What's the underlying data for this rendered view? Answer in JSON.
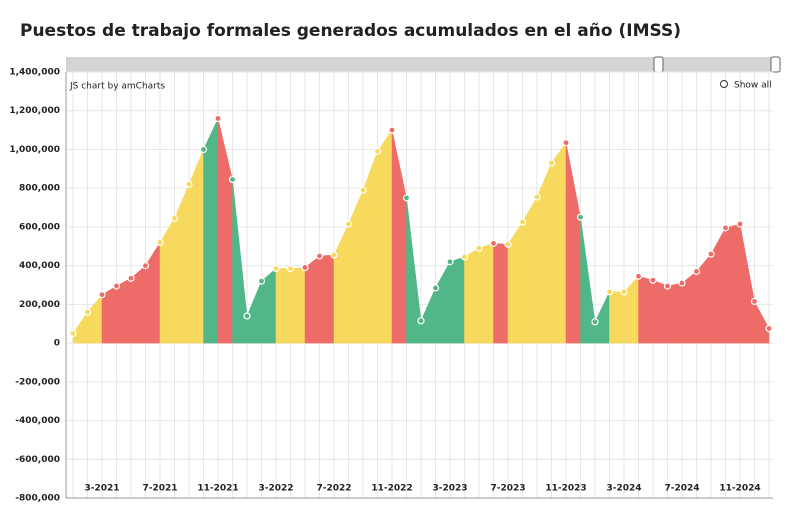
{
  "chart_data": {
    "type": "area",
    "title": "Puestos de trabajo formales generados acumulados en el año (IMSS)",
    "credit": "JS chart by amCharts",
    "zoom_button": "Show all",
    "categories": [
      null,
      null,
      "3-2021",
      null,
      null,
      null,
      "7-2021",
      null,
      null,
      null,
      "11-2021",
      null,
      null,
      null,
      "3-2022",
      null,
      null,
      null,
      "7-2022",
      null,
      null,
      null,
      "11-2022",
      null,
      null,
      null,
      "3-2023",
      null,
      null,
      null,
      "7-2023",
      null,
      null,
      null,
      "11-2023",
      null,
      null,
      null,
      "3-2024",
      null,
      null,
      null,
      "7-2024",
      null,
      null,
      null,
      "11-2024",
      null,
      null
    ],
    "values": [
      50000,
      160000,
      250000,
      295000,
      335000,
      400000,
      520000,
      645000,
      820000,
      1000000,
      1160000,
      845000,
      140000,
      320000,
      385000,
      385000,
      390000,
      450000,
      455000,
      615000,
      790000,
      990000,
      1100000,
      750000,
      115000,
      285000,
      420000,
      445000,
      490000,
      515000,
      510000,
      625000,
      755000,
      930000,
      1035000,
      650000,
      110000,
      265000,
      265000,
      345000,
      325000,
      295000,
      310000,
      370000,
      460000,
      595000,
      615000,
      215000,
      75000
    ],
    "colors": [
      "#f7d95e",
      "#f7d95e",
      "#ee6c67",
      "#ee6c67",
      "#ee6c67",
      "#ee6c67",
      "#f7d95e",
      "#f7d95e",
      "#f7d95e",
      "#52b788",
      "#ee6c67",
      "#52b788",
      "#52b788",
      "#52b788",
      "#f7d95e",
      "#f7d95e",
      "#ee6c67",
      "#ee6c67",
      "#f7d95e",
      "#f7d95e",
      "#f7d95e",
      "#f7d95e",
      "#ee6c67",
      "#52b788",
      "#52b788",
      "#52b788",
      "#52b788",
      "#f7d95e",
      "#f7d95e",
      "#ee6c67",
      "#f7d95e",
      "#f7d95e",
      "#f7d95e",
      "#f7d95e",
      "#ee6c67",
      "#52b788",
      "#52b788",
      "#f7d95e",
      "#f7d95e",
      "#ee6c67",
      "#ee6c67",
      "#ee6c67",
      "#ee6c67",
      "#ee6c67",
      "#ee6c67",
      "#ee6c67",
      "#ee6c67",
      "#ee6c67",
      "#ee6c67"
    ],
    "ylim": [
      -800000,
      1400000
    ],
    "yticks": [
      {
        "value": 1400000,
        "label": "1,400,000"
      },
      {
        "value": 1200000,
        "label": "1,200,000"
      },
      {
        "value": 1000000,
        "label": "1,000,000"
      },
      {
        "value": 800000,
        "label": "800,000"
      },
      {
        "value": 600000,
        "label": "600,000"
      },
      {
        "value": 400000,
        "label": "400,000"
      },
      {
        "value": 200000,
        "label": "200,000"
      },
      0,
      {
        "value": -200000,
        "label": "-200,000"
      },
      {
        "value": -400000,
        "label": "-400,000"
      },
      {
        "value": -600000,
        "label": "-600,000"
      },
      {
        "value": -800000,
        "label": "-800,000"
      }
    ],
    "grid": true
  }
}
